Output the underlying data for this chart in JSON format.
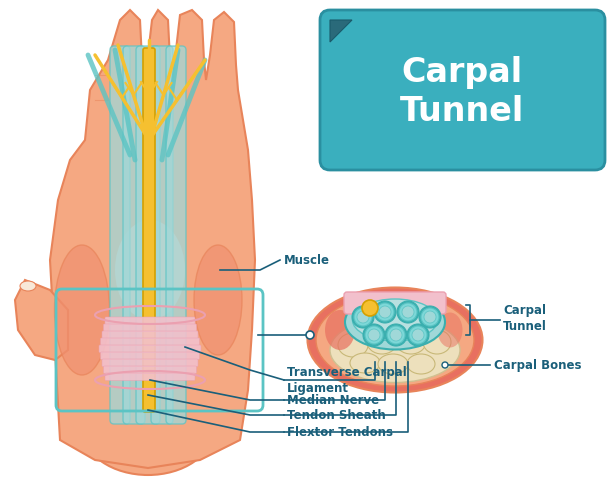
{
  "bg_color": "#ffffff",
  "skin_color": "#F5A882",
  "skin_dark": "#E8845A",
  "skin_medium": "#F09070",
  "teal_color": "#5BC4C4",
  "teal_light": "#A0D8D8",
  "teal_dark": "#3AAFAF",
  "yellow_color": "#F5C030",
  "yellow_dark": "#D4A000",
  "pink_color": "#F2C0CC",
  "pink_medium": "#EBA0B0",
  "blue_label": "#1A5F7A",
  "box_bg_top": "#6EC5D0",
  "box_bg_bot": "#3AAFBE",
  "bone_color": "#EDE0BC",
  "red_muscle": "#E87060",
  "white_muscle": "#F0E0E0",
  "title": "Carpal\nTunnel",
  "labels": {
    "muscle": "Muscle",
    "transverse": "Transverse Carpal\nLigament",
    "median": "Median Nerve",
    "tendon_sheath": "Tendon Sheath",
    "flextor": "Flextor Tendons",
    "carpal_tunnel": "Carpal\nTunnel",
    "carpal_bones": "Carpal Bones"
  },
  "figsize": [
    6.12,
    4.86
  ],
  "dpi": 100
}
